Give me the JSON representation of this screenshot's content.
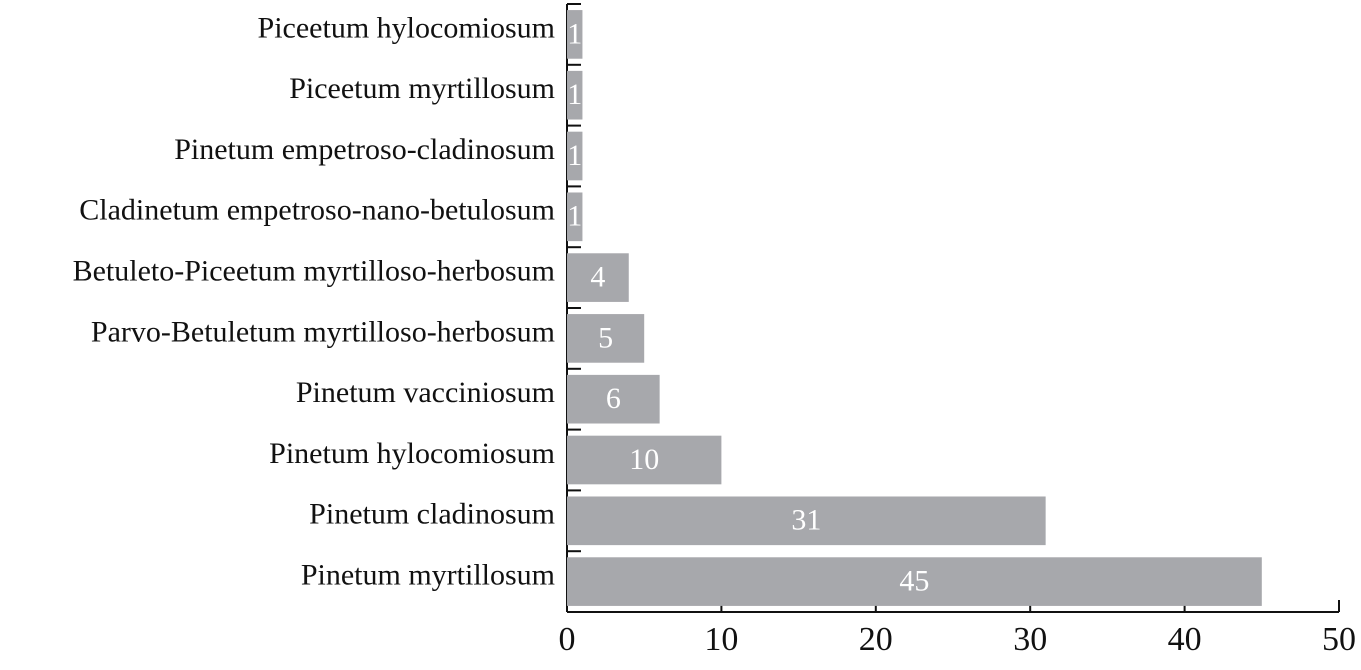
{
  "chart_data": {
    "type": "barh",
    "categories": [
      "Piceetum hylocomiosum",
      "Piceetum myrtillosum",
      "Pinetum empetroso-cladinosum",
      "Cladinetum empetroso-nano-betulosum",
      "Betuleto-Piceetum myrtilloso-herbosum",
      "Parvo-Betuletum myrtilloso-herbosum",
      "Pinetum vacciniosum",
      "Pinetum hylocomiosum",
      "Pinetum cladinosum",
      "Pinetum myrtillosum"
    ],
    "values": [
      1,
      1,
      1,
      1,
      4,
      5,
      6,
      10,
      31,
      45
    ],
    "color": "#a7a8ac",
    "xlim": [
      0,
      50
    ],
    "xticks": [
      0,
      10,
      20,
      30,
      40,
      50
    ]
  }
}
